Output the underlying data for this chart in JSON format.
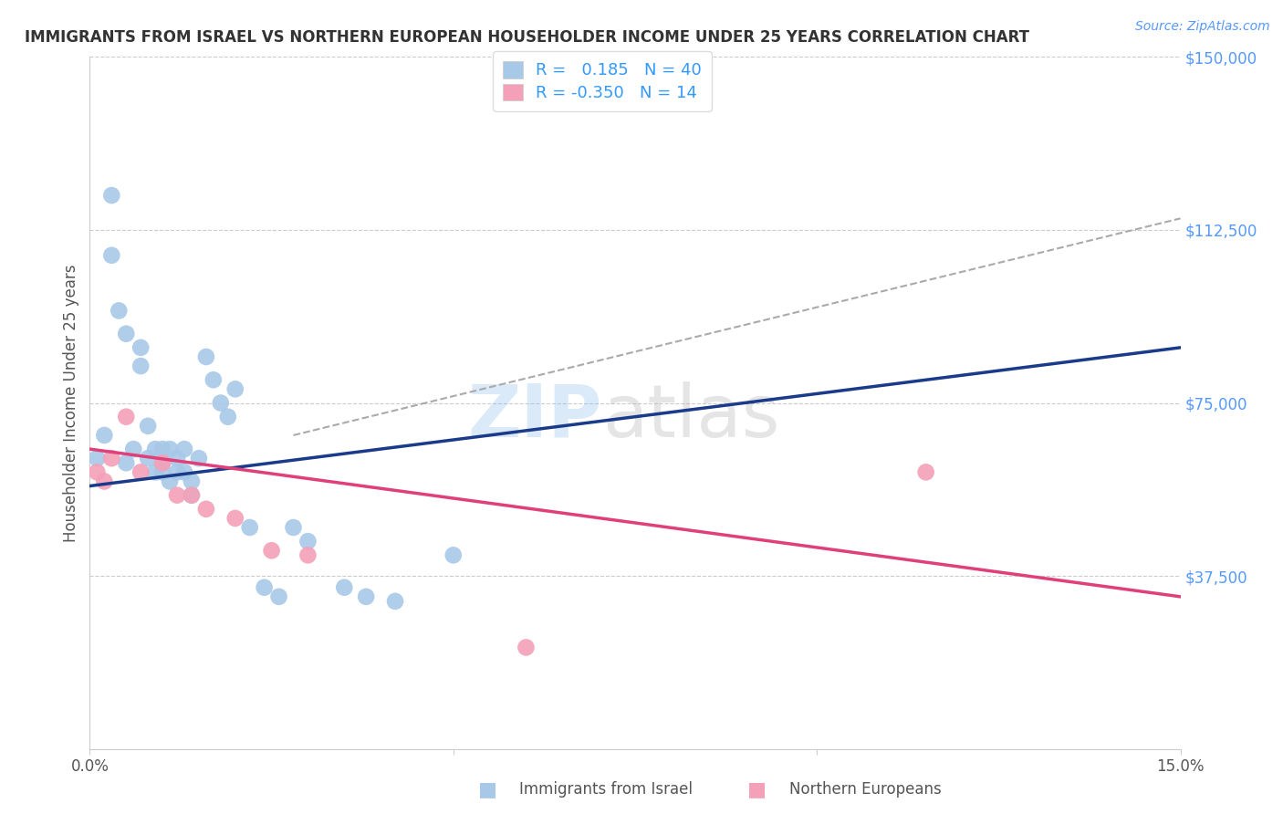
{
  "title": "IMMIGRANTS FROM ISRAEL VS NORTHERN EUROPEAN HOUSEHOLDER INCOME UNDER 25 YEARS CORRELATION CHART",
  "source": "Source: ZipAtlas.com",
  "ylabel": "Householder Income Under 25 years",
  "xlim": [
    0,
    0.15
  ],
  "ylim": [
    0,
    150000
  ],
  "yticks": [
    37500,
    75000,
    112500,
    150000
  ],
  "ytick_labels": [
    "$37,500",
    "$75,000",
    "$112,500",
    "$150,000"
  ],
  "xticks": [
    0.0,
    0.05,
    0.1,
    0.15
  ],
  "xtick_labels": [
    "0.0%",
    "",
    "",
    "15.0%"
  ],
  "israel_R": 0.185,
  "israel_N": 40,
  "northern_R": -0.35,
  "northern_N": 14,
  "israel_color": "#a8c8e8",
  "israel_line_color": "#1a3a8a",
  "northern_color": "#f4a0b8",
  "northern_line_color": "#e0407a",
  "dashed_line_color": "#aaaaaa",
  "background_color": "#ffffff",
  "grid_color": "#cccccc",
  "israel_x": [
    0.001,
    0.002,
    0.003,
    0.003,
    0.004,
    0.005,
    0.005,
    0.006,
    0.007,
    0.007,
    0.008,
    0.008,
    0.009,
    0.009,
    0.01,
    0.01,
    0.01,
    0.011,
    0.011,
    0.012,
    0.012,
    0.013,
    0.013,
    0.014,
    0.014,
    0.015,
    0.016,
    0.017,
    0.018,
    0.019,
    0.02,
    0.022,
    0.024,
    0.026,
    0.028,
    0.03,
    0.035,
    0.038,
    0.042,
    0.05
  ],
  "israel_y": [
    63000,
    68000,
    120000,
    107000,
    95000,
    90000,
    62000,
    65000,
    87000,
    83000,
    70000,
    63000,
    65000,
    60000,
    65000,
    62000,
    60000,
    65000,
    58000,
    63000,
    60000,
    65000,
    60000,
    58000,
    55000,
    63000,
    85000,
    80000,
    75000,
    72000,
    78000,
    48000,
    35000,
    33000,
    48000,
    45000,
    35000,
    33000,
    32000,
    42000
  ],
  "northern_x": [
    0.001,
    0.002,
    0.003,
    0.005,
    0.007,
    0.01,
    0.012,
    0.014,
    0.016,
    0.02,
    0.025,
    0.03,
    0.06,
    0.115
  ],
  "northern_y": [
    60000,
    58000,
    63000,
    72000,
    60000,
    62000,
    55000,
    55000,
    52000,
    50000,
    43000,
    42000,
    22000,
    60000
  ],
  "israel_line_x": [
    0.0,
    0.15
  ],
  "israel_line_y": [
    57000,
    87000
  ],
  "northern_line_x": [
    0.0,
    0.15
  ],
  "northern_line_y": [
    65000,
    33000
  ],
  "dash_line_x": [
    0.028,
    0.15
  ],
  "dash_line_y": [
    68000,
    115000
  ],
  "watermark_text": "ZIPatlas",
  "watermark_zip": "ZIP",
  "watermark_atlas": "atlas",
  "legend_R_color": "#3399ff",
  "legend_N_color": "#3399ff",
  "title_fontsize": 12,
  "axis_label_fontsize": 12,
  "tick_fontsize": 12,
  "source_color": "#5599ff"
}
